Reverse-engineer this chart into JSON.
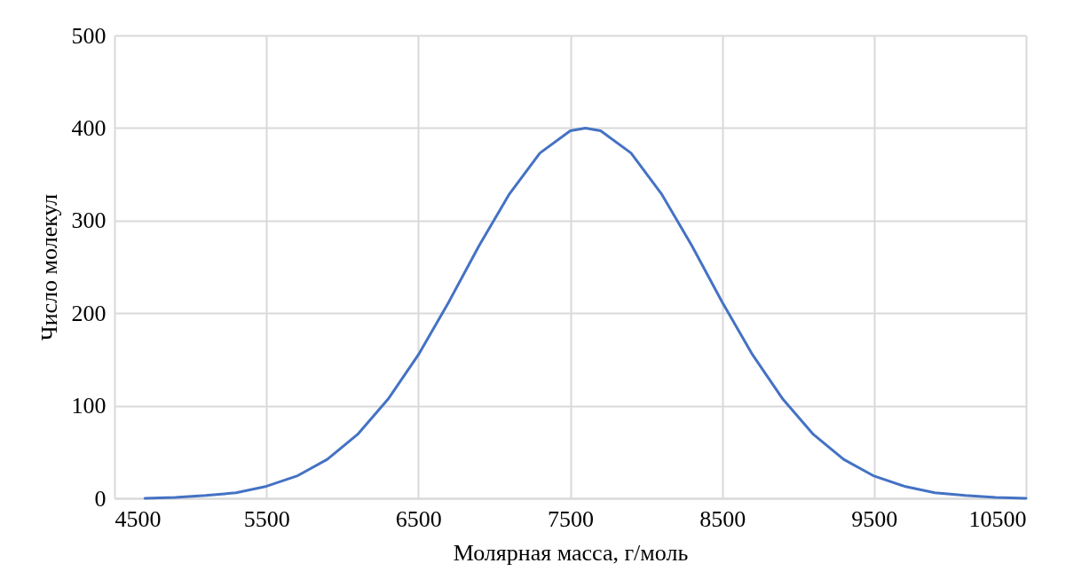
{
  "chart_data": {
    "type": "line",
    "xlabel": "Молярная масса, г/моль",
    "ylabel": "Число молекул",
    "xlim": [
      4500,
      10500
    ],
    "xticks": [
      4500,
      5500,
      6500,
      7500,
      8500,
      9500,
      10500
    ],
    "ylim": [
      0,
      500
    ],
    "yticks": [
      0,
      100,
      200,
      300,
      400,
      500
    ],
    "grid": true,
    "marker": "none",
    "line_style": "solid",
    "series": [
      {
        "color": "#4472c4",
        "x": [
          4700,
          4900,
          5100,
          5300,
          5500,
          5700,
          5900,
          6100,
          6300,
          6500,
          6700,
          6900,
          7100,
          7300,
          7500,
          7600,
          7700,
          7900,
          8100,
          8300,
          8500,
          8700,
          8900,
          9100,
          9300,
          9500,
          9700,
          9900,
          10100,
          10300,
          10500
        ],
        "values": [
          0,
          1,
          3,
          6,
          13,
          24,
          42,
          69,
          107,
          155,
          212,
          273,
          329,
          373,
          397,
          400,
          397,
          373,
          329,
          273,
          212,
          155,
          107,
          69,
          42,
          24,
          13,
          6,
          3,
          1,
          0
        ]
      }
    ]
  }
}
